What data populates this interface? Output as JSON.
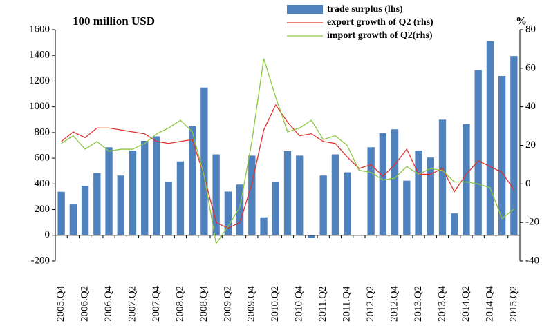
{
  "chart_data": {
    "type": "bar_line",
    "title": "100 million USD",
    "y2_label": "%",
    "categories": [
      "2005.Q4",
      null,
      "2006.Q2",
      null,
      "2006.Q4",
      null,
      "2007.Q2",
      null,
      "2007.Q4",
      null,
      "2008.Q2",
      null,
      "2008.Q4",
      null,
      "2009.Q2",
      null,
      "2009.Q4",
      null,
      "2010.Q2",
      null,
      "2010.Q4",
      null,
      "2011.Q2",
      null,
      "2011.Q4",
      null,
      "2012.Q2",
      null,
      "2012.Q4",
      null,
      "2013.Q2",
      null,
      "2013.Q4",
      null,
      "2014.Q2",
      null,
      "2014.Q4",
      null,
      "2015.Q2"
    ],
    "series": [
      {
        "name": "trade surplus (lhs)",
        "color": "#4f81bd",
        "kind": "bar",
        "values": [
          339,
          240,
          385,
          485,
          685,
          465,
          660,
          735,
          770,
          415,
          575,
          850,
          1150,
          630,
          340,
          395,
          620,
          140,
          415,
          655,
          620,
          -20,
          465,
          630,
          490,
          0,
          685,
          795,
          825,
          425,
          660,
          605,
          900,
          170,
          865,
          1285,
          1510,
          1240,
          1395
        ]
      },
      {
        "name": "export growth of Q2 (rhs)",
        "color": "#e03030",
        "kind": "line",
        "axis": "y2",
        "values": [
          22,
          27,
          24,
          29,
          29,
          28,
          27,
          26,
          22,
          21,
          22,
          23,
          4,
          -20,
          -23,
          -20,
          0,
          28,
          41,
          32,
          25,
          26,
          22,
          21,
          14,
          8,
          10,
          4,
          10,
          18,
          5,
          5,
          8,
          -4,
          5,
          12,
          9,
          6,
          -3
        ]
      },
      {
        "name": "import growth of Q2(rhs)",
        "color": "#8cc63f",
        "kind": "line",
        "axis": "y2",
        "values": [
          21,
          25,
          18,
          22,
          17,
          18,
          18,
          21,
          26,
          29,
          33,
          27,
          4,
          -31,
          -22,
          -12,
          22,
          65,
          45,
          27,
          29,
          33,
          23,
          25,
          20,
          7,
          6,
          2,
          3,
          9,
          5,
          8,
          7,
          1,
          1,
          0,
          -2,
          -18,
          -13
        ]
      }
    ],
    "ylim": [
      -200,
      1600
    ],
    "yticks": [
      -200,
      0,
      200,
      400,
      600,
      800,
      1000,
      1200,
      1400,
      1600
    ],
    "y2lim": [
      -40,
      80
    ],
    "y2ticks": [
      -40,
      -20,
      0,
      20,
      40,
      60,
      80
    ]
  }
}
